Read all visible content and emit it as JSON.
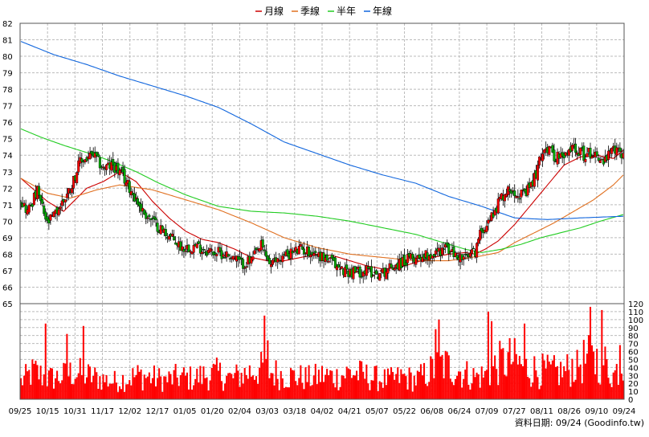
{
  "chart_data": {
    "type": "candlestick+volume",
    "legend": {
      "placement": "top-center",
      "items": [
        {
          "label": "月線",
          "color": "#cc0000"
        },
        {
          "label": "季線",
          "color": "#e07020"
        },
        {
          "label": "半年",
          "color": "#22cc22"
        },
        {
          "label": "年線",
          "color": "#1166dd"
        }
      ]
    },
    "price_axis": {
      "min": 65,
      "max": 82,
      "ticks": [
        65,
        66,
        67,
        68,
        69,
        70,
        71,
        72,
        73,
        74,
        75,
        76,
        77,
        78,
        79,
        80,
        81,
        82
      ],
      "position": "left"
    },
    "volume_axis": {
      "min": 0,
      "max": 120,
      "ticks": [
        0,
        10,
        20,
        30,
        40,
        50,
        60,
        70,
        80,
        90,
        100,
        110,
        120
      ],
      "position": "right"
    },
    "x_labels": [
      "09/25",
      "10/15",
      "10/31",
      "11/17",
      "12/02",
      "12/17",
      "01/05",
      "01/20",
      "02/04",
      "03/03",
      "03/18",
      "04/02",
      "04/21",
      "05/07",
      "05/22",
      "06/08",
      "06/24",
      "07/09",
      "07/27",
      "08/11",
      "08/26",
      "09/10",
      "09/24"
    ],
    "grid": true,
    "colors": {
      "up": "#ff0000",
      "down": "#00aa00",
      "volume": "#ff0000",
      "grid": "#bbbbbb"
    },
    "price_anchors": [
      [
        0,
        71.3
      ],
      [
        4,
        70.6
      ],
      [
        10,
        71.8
      ],
      [
        16,
        69.8
      ],
      [
        22,
        70.6
      ],
      [
        30,
        72.0
      ],
      [
        36,
        73.6
      ],
      [
        44,
        74.0
      ],
      [
        50,
        73.2
      ],
      [
        56,
        73.4
      ],
      [
        62,
        72.7
      ],
      [
        68,
        71.7
      ],
      [
        74,
        70.6
      ],
      [
        82,
        69.8
      ],
      [
        90,
        69.1
      ],
      [
        98,
        68.4
      ],
      [
        106,
        68.5
      ],
      [
        114,
        68.2
      ],
      [
        120,
        68.1
      ],
      [
        128,
        67.9
      ],
      [
        134,
        67.4
      ],
      [
        140,
        67.6
      ],
      [
        146,
        68.5
      ],
      [
        152,
        67.3
      ],
      [
        156,
        67.7
      ],
      [
        162,
        68.0
      ],
      [
        170,
        68.3
      ],
      [
        178,
        68.1
      ],
      [
        186,
        67.7
      ],
      [
        194,
        67.1
      ],
      [
        202,
        66.9
      ],
      [
        210,
        67.0
      ],
      [
        218,
        66.8
      ],
      [
        226,
        67.3
      ],
      [
        234,
        67.6
      ],
      [
        242,
        67.9
      ],
      [
        250,
        68.0
      ],
      [
        258,
        68.4
      ],
      [
        264,
        67.9
      ],
      [
        270,
        67.7
      ],
      [
        276,
        68.2
      ],
      [
        280,
        69.5
      ],
      [
        286,
        70.3
      ],
      [
        292,
        71.5
      ],
      [
        298,
        72.0
      ],
      [
        306,
        71.5
      ],
      [
        312,
        72.6
      ],
      [
        318,
        74.6
      ],
      [
        324,
        74.0
      ],
      [
        330,
        73.8
      ],
      [
        336,
        74.6
      ],
      [
        342,
        74.0
      ],
      [
        348,
        74.2
      ],
      [
        354,
        73.6
      ],
      [
        360,
        74.3
      ],
      [
        366,
        74.1
      ]
    ],
    "moving_averages": [
      {
        "name": "月線",
        "points": [
          [
            0,
            72.6
          ],
          [
            16,
            71.2
          ],
          [
            26,
            70.6
          ],
          [
            40,
            72.0
          ],
          [
            50,
            72.4
          ],
          [
            60,
            73.0
          ],
          [
            70,
            72.4
          ],
          [
            80,
            71.2
          ],
          [
            90,
            70.2
          ],
          [
            100,
            69.4
          ],
          [
            110,
            68.9
          ],
          [
            120,
            68.7
          ],
          [
            130,
            68.3
          ],
          [
            140,
            67.8
          ],
          [
            150,
            67.6
          ],
          [
            160,
            67.6
          ],
          [
            170,
            67.8
          ],
          [
            180,
            68.0
          ],
          [
            190,
            67.9
          ],
          [
            200,
            67.6
          ],
          [
            210,
            67.3
          ],
          [
            220,
            67.1
          ],
          [
            230,
            67.2
          ],
          [
            240,
            67.5
          ],
          [
            250,
            67.8
          ],
          [
            260,
            68.0
          ],
          [
            270,
            68.1
          ],
          [
            276,
            68.0
          ],
          [
            282,
            68.3
          ],
          [
            290,
            68.8
          ],
          [
            300,
            69.8
          ],
          [
            310,
            71.0
          ],
          [
            320,
            72.2
          ],
          [
            330,
            73.4
          ],
          [
            340,
            73.9
          ],
          [
            350,
            74.0
          ],
          [
            360,
            73.8
          ],
          [
            366,
            74.3
          ]
        ]
      },
      {
        "name": "季線",
        "points": [
          [
            0,
            72.6
          ],
          [
            16,
            71.7
          ],
          [
            30,
            71.4
          ],
          [
            46,
            71.9
          ],
          [
            60,
            72.2
          ],
          [
            80,
            71.9
          ],
          [
            100,
            71.3
          ],
          [
            120,
            70.7
          ],
          [
            140,
            69.9
          ],
          [
            160,
            69.0
          ],
          [
            180,
            68.4
          ],
          [
            200,
            68.0
          ],
          [
            220,
            67.8
          ],
          [
            240,
            67.6
          ],
          [
            260,
            67.6
          ],
          [
            280,
            67.9
          ],
          [
            290,
            68.1
          ],
          [
            300,
            68.7
          ],
          [
            312,
            69.3
          ],
          [
            324,
            69.9
          ],
          [
            336,
            70.6
          ],
          [
            348,
            71.3
          ],
          [
            360,
            72.2
          ],
          [
            366,
            72.8
          ]
        ]
      },
      {
        "name": "半年",
        "points": [
          [
            0,
            75.6
          ],
          [
            12,
            75.1
          ],
          [
            26,
            74.6
          ],
          [
            42,
            74.1
          ],
          [
            56,
            73.6
          ],
          [
            70,
            73.0
          ],
          [
            84,
            72.3
          ],
          [
            100,
            71.6
          ],
          [
            120,
            70.9
          ],
          [
            140,
            70.6
          ],
          [
            160,
            70.5
          ],
          [
            180,
            70.3
          ],
          [
            200,
            70.0
          ],
          [
            220,
            69.6
          ],
          [
            240,
            69.2
          ],
          [
            260,
            68.6
          ],
          [
            270,
            68.3
          ],
          [
            280,
            68.1
          ],
          [
            292,
            68.3
          ],
          [
            304,
            68.6
          ],
          [
            316,
            69.0
          ],
          [
            328,
            69.3
          ],
          [
            340,
            69.6
          ],
          [
            352,
            70.0
          ],
          [
            366,
            70.4
          ]
        ]
      },
      {
        "name": "年線",
        "points": [
          [
            0,
            80.9
          ],
          [
            20,
            80.1
          ],
          [
            40,
            79.5
          ],
          [
            60,
            78.8
          ],
          [
            80,
            78.2
          ],
          [
            100,
            77.6
          ],
          [
            120,
            76.9
          ],
          [
            140,
            75.9
          ],
          [
            160,
            74.8
          ],
          [
            180,
            74.1
          ],
          [
            200,
            73.4
          ],
          [
            220,
            72.8
          ],
          [
            240,
            72.3
          ],
          [
            260,
            71.5
          ],
          [
            280,
            70.9
          ],
          [
            300,
            70.2
          ],
          [
            320,
            70.1
          ],
          [
            340,
            70.2
          ],
          [
            366,
            70.3
          ]
        ]
      }
    ],
    "volume_anchors": [
      [
        0,
        22
      ],
      [
        8,
        35
      ],
      [
        16,
        26
      ],
      [
        24,
        28
      ],
      [
        32,
        34
      ],
      [
        40,
        30
      ],
      [
        48,
        26
      ],
      [
        56,
        22
      ],
      [
        64,
        26
      ],
      [
        72,
        30
      ],
      [
        80,
        27
      ],
      [
        88,
        24
      ],
      [
        96,
        28
      ],
      [
        104,
        26
      ],
      [
        112,
        30
      ],
      [
        120,
        32
      ],
      [
        128,
        26
      ],
      [
        136,
        32
      ],
      [
        144,
        38
      ],
      [
        152,
        34
      ],
      [
        160,
        30
      ],
      [
        168,
        28
      ],
      [
        176,
        26
      ],
      [
        184,
        30
      ],
      [
        192,
        28
      ],
      [
        200,
        34
      ],
      [
        208,
        30
      ],
      [
        216,
        26
      ],
      [
        224,
        24
      ],
      [
        232,
        28
      ],
      [
        240,
        24
      ],
      [
        248,
        34
      ],
      [
        256,
        44
      ],
      [
        264,
        38
      ],
      [
        270,
        32
      ],
      [
        276,
        28
      ],
      [
        282,
        30
      ],
      [
        290,
        44
      ],
      [
        298,
        50
      ],
      [
        306,
        40
      ],
      [
        314,
        36
      ],
      [
        322,
        34
      ],
      [
        330,
        34
      ],
      [
        338,
        46
      ],
      [
        346,
        50
      ],
      [
        354,
        48
      ],
      [
        360,
        30
      ],
      [
        366,
        50
      ]
    ],
    "volume_highlights": [
      [
        15,
        95
      ],
      [
        28,
        82
      ],
      [
        38,
        92
      ],
      [
        148,
        105
      ],
      [
        150,
        74
      ],
      [
        252,
        88
      ],
      [
        254,
        100
      ],
      [
        284,
        110
      ],
      [
        286,
        98
      ],
      [
        306,
        95
      ],
      [
        338,
        62
      ],
      [
        346,
        116
      ],
      [
        348,
        60
      ],
      [
        353,
        112
      ],
      [
        364,
        68
      ]
    ]
  },
  "footer": {
    "credit": "資料日期: 09/24  (Goodinfo.tw)"
  }
}
